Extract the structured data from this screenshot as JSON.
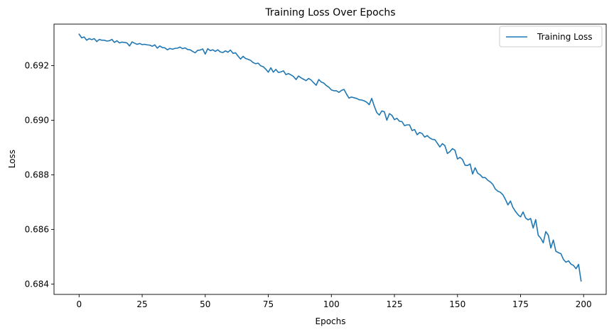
{
  "chart_data": {
    "type": "line",
    "title": "Training Loss Over Epochs",
    "xlabel": "Epochs",
    "ylabel": "Loss",
    "xlim": [
      -9.95,
      208.95
    ],
    "ylim": [
      0.68362,
      0.69352
    ],
    "x_ticks": [
      0,
      25,
      50,
      75,
      100,
      125,
      150,
      175,
      200
    ],
    "x_tick_labels": [
      "0",
      "25",
      "50",
      "75",
      "100",
      "125",
      "150",
      "175",
      "200"
    ],
    "y_ticks": [
      0.684,
      0.686,
      0.688,
      0.69,
      0.692
    ],
    "y_tick_labels": [
      "0.684",
      "0.686",
      "0.688",
      "0.690",
      "0.692"
    ],
    "grid": false,
    "legend_position": "top-right",
    "series": [
      {
        "name": "Training Loss",
        "color": "#1f77b4",
        "x": [
          0,
          1,
          2,
          3,
          4,
          5,
          6,
          7,
          8,
          9,
          10,
          11,
          12,
          13,
          14,
          15,
          16,
          17,
          18,
          19,
          20,
          21,
          22,
          23,
          24,
          25,
          26,
          27,
          28,
          29,
          30,
          31,
          32,
          33,
          34,
          35,
          36,
          37,
          38,
          39,
          40,
          41,
          42,
          43,
          44,
          45,
          46,
          47,
          48,
          49,
          50,
          51,
          52,
          53,
          54,
          55,
          56,
          57,
          58,
          59,
          60,
          61,
          62,
          63,
          64,
          65,
          66,
          67,
          68,
          69,
          70,
          71,
          72,
          73,
          74,
          75,
          76,
          77,
          78,
          79,
          80,
          81,
          82,
          83,
          84,
          85,
          86,
          87,
          88,
          89,
          90,
          91,
          92,
          93,
          94,
          95,
          96,
          97,
          98,
          99,
          100,
          101,
          102,
          103,
          104,
          105,
          106,
          107,
          108,
          109,
          110,
          111,
          112,
          113,
          114,
          115,
          116,
          117,
          118,
          119,
          120,
          121,
          122,
          123,
          124,
          125,
          126,
          127,
          128,
          129,
          130,
          131,
          132,
          133,
          134,
          135,
          136,
          137,
          138,
          139,
          140,
          141,
          142,
          143,
          144,
          145,
          146,
          147,
          148,
          149,
          150,
          151,
          152,
          153,
          154,
          155,
          156,
          157,
          158,
          159,
          160,
          161,
          162,
          163,
          164,
          165,
          166,
          167,
          168,
          169,
          170,
          171,
          172,
          173,
          174,
          175,
          176,
          177,
          178,
          179,
          180,
          181,
          182,
          183,
          184,
          185,
          186,
          187,
          188,
          189,
          190,
          191,
          192,
          193,
          194,
          195,
          196,
          197,
          198,
          199
        ],
        "y": [
          0.69315,
          0.69302,
          0.69305,
          0.69293,
          0.69299,
          0.69295,
          0.69299,
          0.69288,
          0.69296,
          0.69293,
          0.69293,
          0.6929,
          0.69291,
          0.69296,
          0.69285,
          0.69291,
          0.69283,
          0.69286,
          0.69285,
          0.69283,
          0.69272,
          0.69287,
          0.69282,
          0.69278,
          0.69281,
          0.69277,
          0.69278,
          0.69276,
          0.69275,
          0.69271,
          0.69276,
          0.69264,
          0.69272,
          0.69266,
          0.69265,
          0.69258,
          0.69263,
          0.6926,
          0.69263,
          0.69264,
          0.69268,
          0.69262,
          0.69265,
          0.69259,
          0.69258,
          0.69252,
          0.69247,
          0.69256,
          0.69257,
          0.69261,
          0.69242,
          0.69262,
          0.69255,
          0.69258,
          0.69252,
          0.69258,
          0.6925,
          0.69248,
          0.69254,
          0.69249,
          0.69257,
          0.69245,
          0.69247,
          0.69235,
          0.69224,
          0.69234,
          0.69226,
          0.69223,
          0.69219,
          0.69211,
          0.69207,
          0.69209,
          0.69199,
          0.69196,
          0.69187,
          0.69176,
          0.69192,
          0.69176,
          0.69186,
          0.69175,
          0.69177,
          0.69181,
          0.69167,
          0.69171,
          0.69166,
          0.6916,
          0.69149,
          0.69162,
          0.69155,
          0.6915,
          0.69145,
          0.69153,
          0.69147,
          0.69137,
          0.69128,
          0.69149,
          0.6914,
          0.69136,
          0.69127,
          0.69121,
          0.69111,
          0.69108,
          0.69108,
          0.69102,
          0.69109,
          0.69113,
          0.69096,
          0.69081,
          0.69085,
          0.69082,
          0.6908,
          0.69075,
          0.69074,
          0.69071,
          0.69066,
          0.69057,
          0.6908,
          0.69052,
          0.69028,
          0.69019,
          0.69034,
          0.69031,
          0.69,
          0.69024,
          0.69018,
          0.69002,
          0.69007,
          0.68996,
          0.68995,
          0.6898,
          0.68983,
          0.68983,
          0.68962,
          0.68966,
          0.68947,
          0.68955,
          0.68951,
          0.68938,
          0.68944,
          0.68935,
          0.6893,
          0.68929,
          0.68916,
          0.68902,
          0.68914,
          0.68907,
          0.68878,
          0.68885,
          0.68896,
          0.6889,
          0.68858,
          0.68864,
          0.68856,
          0.68835,
          0.68834,
          0.6884,
          0.68803,
          0.68826,
          0.68806,
          0.688,
          0.6879,
          0.6879,
          0.6878,
          0.68774,
          0.68765,
          0.68748,
          0.6874,
          0.68736,
          0.68727,
          0.6871,
          0.6869,
          0.68704,
          0.6868,
          0.68666,
          0.68654,
          0.68646,
          0.68664,
          0.68642,
          0.68635,
          0.6864,
          0.68605,
          0.68636,
          0.68579,
          0.68568,
          0.68551,
          0.68592,
          0.68579,
          0.68532,
          0.68561,
          0.6852,
          0.68515,
          0.68511,
          0.6849,
          0.6848,
          0.68485,
          0.68473,
          0.68468,
          0.68456,
          0.68472,
          0.68411
        ]
      }
    ]
  }
}
